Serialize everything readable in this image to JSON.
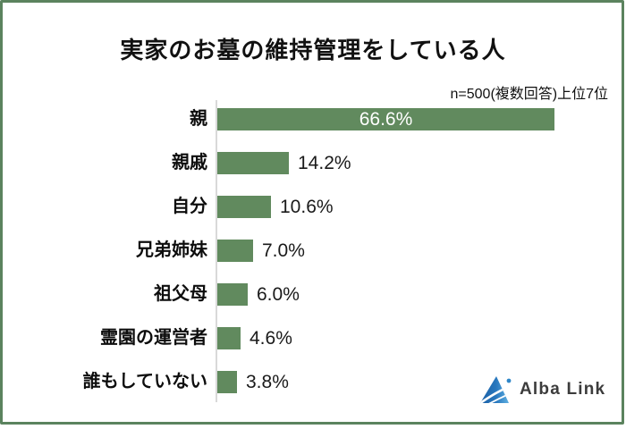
{
  "frame": {
    "border_color": "#5b835e"
  },
  "header": {
    "title": "実家のお墓の維持管理をしている人",
    "note": "n=500(複数回答)上位7位"
  },
  "chart_data": {
    "type": "bar",
    "orientation": "horizontal",
    "title": "実家のお墓の維持管理をしている人",
    "subtitle": "n=500(複数回答)上位7位",
    "categories": [
      "親",
      "親戚",
      "自分",
      "兄弟姉妹",
      "祖父母",
      "霊園の運営者",
      "誰もしていない"
    ],
    "values": [
      66.6,
      14.2,
      10.6,
      7.0,
      6.0,
      4.6,
      3.8
    ],
    "value_labels": [
      "66.6%",
      "14.2%",
      "10.6%",
      "7.0%",
      "6.0%",
      "4.6%",
      "3.8%"
    ],
    "xlabel": "",
    "ylabel": "",
    "xlim": [
      0,
      80
    ],
    "grid": false,
    "legend": false,
    "bar_color": "#618a5e",
    "axis_line_color": "#d9d9d9",
    "inside_label_color": "#ffffff",
    "outside_label_color": "#1a1a1a"
  },
  "footer": {
    "logo_text": "Alba Link",
    "logo_icon": "albalink-triangle-mountain",
    "logo_dark_blue": "#1b5fa5",
    "logo_light_blue": "#5fb0e2"
  }
}
